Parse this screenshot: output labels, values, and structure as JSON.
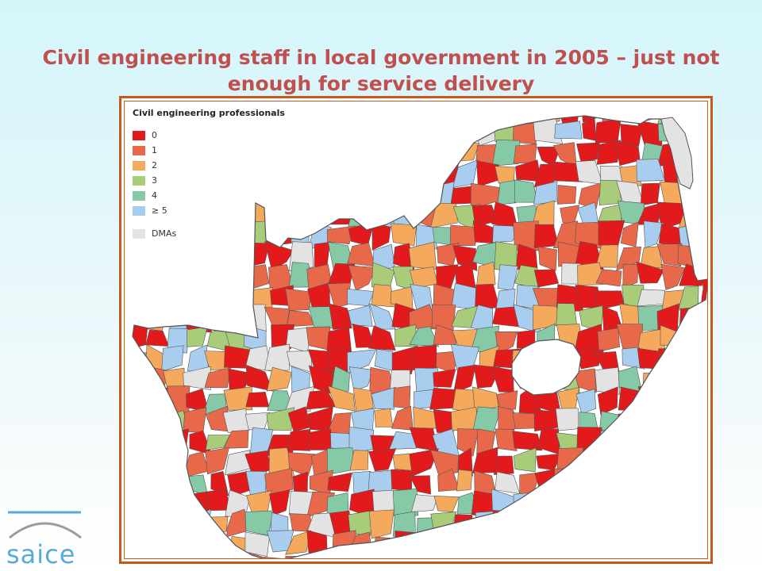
{
  "slide": {
    "title": "Civil engineering staff in local government in 2005 – just not enough for service delivery"
  },
  "map": {
    "legend_title": "Civil engineering professionals",
    "legend": [
      {
        "label": "0",
        "color": "#e31a1c"
      },
      {
        "label": "1",
        "color": "#e8684a"
      },
      {
        "label": "2",
        "color": "#f4a95c"
      },
      {
        "label": "3",
        "color": "#a8cc7a"
      },
      {
        "label": "4",
        "color": "#86c9a6"
      },
      {
        "label": "≥ 5",
        "color": "#a9cdee"
      },
      {
        "label": "DMAs",
        "color": "#e3e3e3"
      }
    ],
    "border_color": "#555555",
    "enclave_color": "#ffffff"
  },
  "logo": {
    "text": "saice",
    "color": "#5aaad8"
  }
}
